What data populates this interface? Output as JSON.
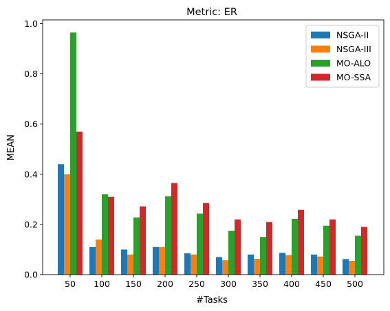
{
  "chart_data": {
    "type": "bar",
    "title": "Metric: ER",
    "xlabel": "#Tasks",
    "ylabel": "MEAN",
    "ylim": [
      0,
      1.0
    ],
    "yticks": [
      "0.0",
      "0.2",
      "0.4",
      "0.6",
      "0.8",
      "1.0"
    ],
    "categories": [
      "50",
      "100",
      "150",
      "200",
      "250",
      "300",
      "350",
      "400",
      "450",
      "500"
    ],
    "legend_position": "top-right",
    "grid": false,
    "series": [
      {
        "name": "NSGA-II",
        "color": "#1f77b4",
        "values": [
          0.44,
          0.11,
          0.1,
          0.11,
          0.085,
          0.07,
          0.08,
          0.087,
          0.08,
          0.062
        ]
      },
      {
        "name": "NSGA-III",
        "color": "#ff7f0e",
        "values": [
          0.4,
          0.14,
          0.08,
          0.11,
          0.08,
          0.057,
          0.063,
          0.078,
          0.072,
          0.055
        ]
      },
      {
        "name": "MO-ALO",
        "color": "#2ca02c",
        "values": [
          0.965,
          0.32,
          0.228,
          0.312,
          0.243,
          0.175,
          0.15,
          0.222,
          0.195,
          0.155
        ]
      },
      {
        "name": "MO-SSA",
        "color": "#d62728",
        "values": [
          0.57,
          0.31,
          0.272,
          0.365,
          0.285,
          0.22,
          0.21,
          0.258,
          0.22,
          0.19
        ]
      }
    ]
  }
}
